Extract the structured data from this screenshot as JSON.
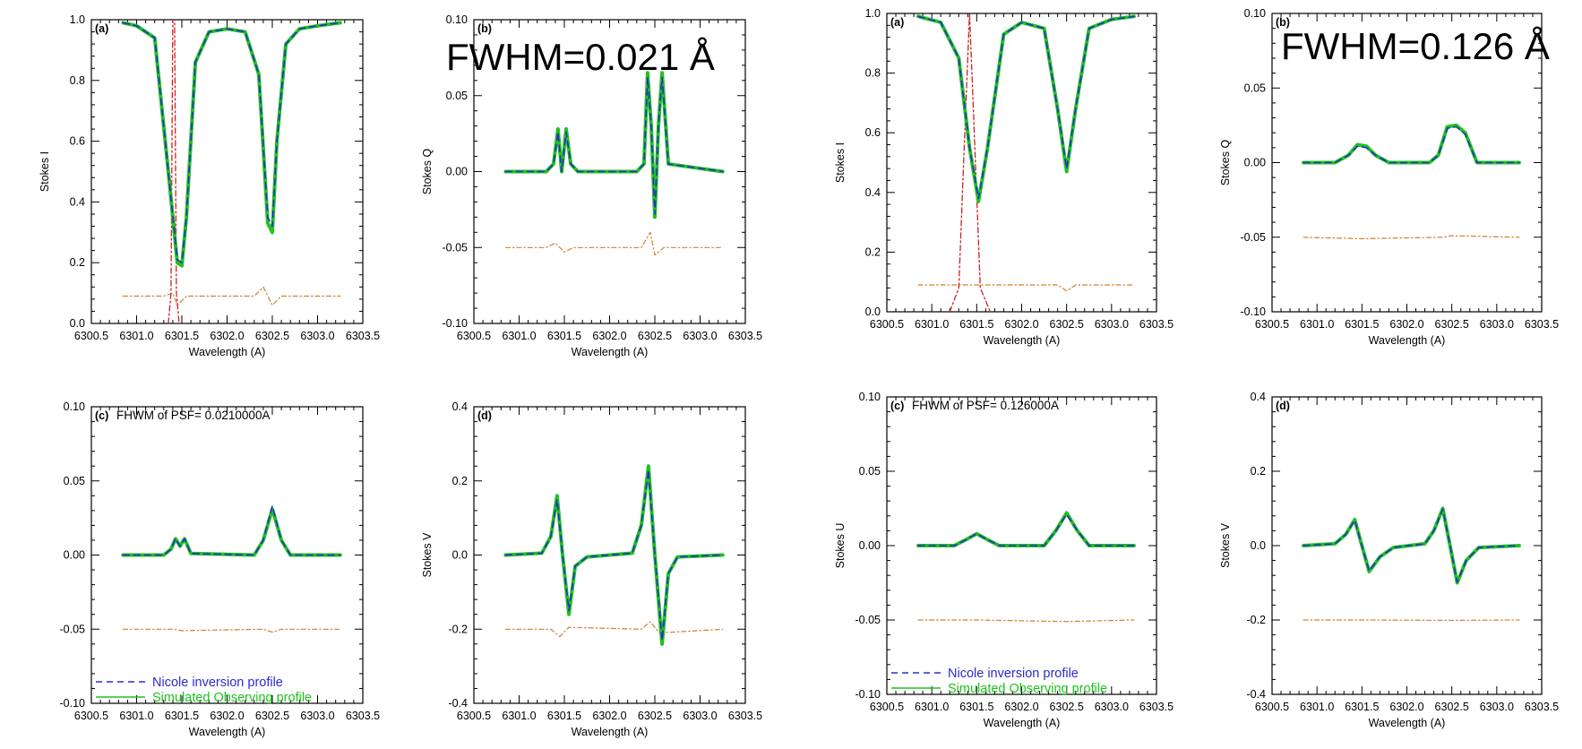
{
  "colors": {
    "inversion": "#2b2bd0",
    "observed": "#1fc21f",
    "residual": "#d08030",
    "psf": "#cc2222",
    "axis": "#000000"
  },
  "figure_labels": {
    "left_fwhm": "FWHM=0.021 Å",
    "right_fwhm": "FWHM=0.126 Å",
    "left_psf": "FHWM of PSF= 0.0210000A",
    "right_psf": "FHWM of PSF= 0.126000A"
  },
  "legend": {
    "inversion": "Nicole inversion profile",
    "observed": "Simulated Observing profile"
  },
  "chart_data": [
    {
      "id": "L-a",
      "type": "line",
      "panel": "(a)",
      "xlabel": "Wavelength (A)",
      "ylabel": "Stokes I",
      "xlim": [
        6300.5,
        6303.5
      ],
      "ylim": [
        0.0,
        1.0
      ],
      "xticks": [
        "6300.5",
        "6301.0",
        "6301.5",
        "6302.0",
        "6302.5",
        "6303.0",
        "6303.5"
      ],
      "yticks": [
        "0.0",
        "0.2",
        "0.4",
        "0.6",
        "0.8",
        "1.0"
      ],
      "series": [
        {
          "role": "observed",
          "x": [
            6300.85,
            6301.0,
            6301.2,
            6301.35,
            6301.45,
            6301.5,
            6301.55,
            6301.65,
            6301.8,
            6302.0,
            6302.2,
            6302.35,
            6302.45,
            6302.5,
            6302.55,
            6302.65,
            6302.8,
            6303.0,
            6303.25
          ],
          "y": [
            0.99,
            0.98,
            0.94,
            0.5,
            0.2,
            0.19,
            0.35,
            0.86,
            0.96,
            0.97,
            0.96,
            0.82,
            0.33,
            0.3,
            0.6,
            0.92,
            0.97,
            0.98,
            0.99
          ]
        },
        {
          "role": "inversion",
          "x": [
            6300.85,
            6301.0,
            6301.2,
            6301.35,
            6301.45,
            6301.5,
            6301.55,
            6301.65,
            6301.8,
            6302.0,
            6302.2,
            6302.35,
            6302.45,
            6302.5,
            6302.55,
            6302.65,
            6302.8,
            6303.0,
            6303.25
          ],
          "y": [
            0.99,
            0.98,
            0.94,
            0.5,
            0.21,
            0.2,
            0.35,
            0.86,
            0.96,
            0.97,
            0.96,
            0.82,
            0.35,
            0.32,
            0.6,
            0.92,
            0.97,
            0.98,
            0.99
          ]
        },
        {
          "role": "psf",
          "x": [
            6301.35,
            6301.38,
            6301.4,
            6301.42,
            6301.44,
            6301.47
          ],
          "y": [
            0.0,
            0.1,
            1.0,
            1.0,
            0.1,
            0.0
          ]
        },
        {
          "role": "residual",
          "x": [
            6300.85,
            6301.3,
            6301.4,
            6301.45,
            6301.55,
            6302.3,
            6302.4,
            6302.5,
            6302.6,
            6303.25
          ],
          "y": [
            0.09,
            0.09,
            0.1,
            0.06,
            0.09,
            0.09,
            0.12,
            0.06,
            0.09,
            0.09
          ]
        }
      ]
    },
    {
      "id": "L-b",
      "type": "line",
      "panel": "(b)",
      "xlabel": "Wavelength (A)",
      "ylabel": "Stokes Q",
      "xlim": [
        6300.5,
        6303.5
      ],
      "ylim": [
        -0.1,
        0.1
      ],
      "xticks": [
        "6300.5",
        "6301.0",
        "6301.5",
        "6302.0",
        "6302.5",
        "6303.0",
        "6303.5"
      ],
      "yticks": [
        "-0.10",
        "-0.05",
        "0.00",
        "0.05",
        "0.10"
      ],
      "series": [
        {
          "role": "observed",
          "x": [
            6300.85,
            6301.3,
            6301.38,
            6301.43,
            6301.47,
            6301.52,
            6301.57,
            6301.65,
            6302.3,
            6302.38,
            6302.42,
            6302.46,
            6302.5,
            6302.54,
            6302.58,
            6302.65,
            6303.25
          ],
          "y": [
            0,
            0,
            0.005,
            0.028,
            0.0,
            0.028,
            0.005,
            0,
            0,
            0.005,
            0.065,
            0.03,
            -0.03,
            0.03,
            0.065,
            0.005,
            0
          ]
        },
        {
          "role": "inversion",
          "x": [
            6300.85,
            6301.3,
            6301.38,
            6301.43,
            6301.47,
            6301.52,
            6301.57,
            6301.65,
            6302.3,
            6302.38,
            6302.42,
            6302.46,
            6302.5,
            6302.54,
            6302.58,
            6302.65,
            6303.25
          ],
          "y": [
            0,
            0,
            0.005,
            0.026,
            0.0,
            0.026,
            0.005,
            0,
            0,
            0.005,
            0.062,
            0.03,
            -0.028,
            0.03,
            0.062,
            0.005,
            0
          ]
        },
        {
          "role": "residual",
          "x": [
            6300.85,
            6301.3,
            6301.4,
            6301.5,
            6301.6,
            6302.35,
            6302.45,
            6302.5,
            6302.6,
            6303.25
          ],
          "y": [
            -0.05,
            -0.05,
            -0.047,
            -0.053,
            -0.05,
            -0.05,
            -0.04,
            -0.055,
            -0.05,
            -0.05
          ]
        }
      ]
    },
    {
      "id": "L-c",
      "type": "line",
      "panel": "(c)",
      "xlabel": "Wavelength (A)",
      "ylabel": "",
      "xlim": [
        6300.5,
        6303.5
      ],
      "ylim": [
        -0.1,
        0.1
      ],
      "xticks": [
        "6300.5",
        "6301.0",
        "6301.5",
        "6302.0",
        "6302.5",
        "6303.0",
        "6303.5"
      ],
      "yticks": [
        "-0.10",
        "-0.05",
        "0.00",
        "0.05",
        "0.10"
      ],
      "series": [
        {
          "role": "observed",
          "x": [
            6300.85,
            6301.3,
            6301.38,
            6301.43,
            6301.48,
            6301.53,
            6301.6,
            6302.3,
            6302.4,
            6302.5,
            6302.6,
            6302.7,
            6303.25
          ],
          "y": [
            0,
            0,
            0.004,
            0.011,
            0.006,
            0.011,
            0.001,
            0,
            0.01,
            0.031,
            0.01,
            0,
            0
          ]
        },
        {
          "role": "inversion",
          "x": [
            6300.85,
            6301.3,
            6301.38,
            6301.43,
            6301.48,
            6301.53,
            6301.6,
            6302.3,
            6302.4,
            6302.5,
            6302.6,
            6302.7,
            6303.25
          ],
          "y": [
            0,
            0,
            0.004,
            0.011,
            0.006,
            0.011,
            0.001,
            0,
            0.01,
            0.033,
            0.01,
            0,
            0
          ]
        },
        {
          "role": "residual",
          "x": [
            6300.85,
            6301.4,
            6301.5,
            6302.4,
            6302.5,
            6302.6,
            6303.25
          ],
          "y": [
            -0.05,
            -0.05,
            -0.051,
            -0.05,
            -0.052,
            -0.05,
            -0.05
          ]
        }
      ]
    },
    {
      "id": "L-d",
      "type": "line",
      "panel": "(d)",
      "xlabel": "Wavelength (A)",
      "ylabel": "Stokes V",
      "xlim": [
        6300.5,
        6303.5
      ],
      "ylim": [
        -0.4,
        0.4
      ],
      "xticks": [
        "6300.5",
        "6301.0",
        "6301.5",
        "6302.0",
        "6302.5",
        "6303.0",
        "6303.5"
      ],
      "yticks": [
        "-0.4",
        "-0.2",
        "0.0",
        "0.2",
        "0.4"
      ],
      "series": [
        {
          "role": "observed",
          "x": [
            6300.85,
            6301.25,
            6301.35,
            6301.42,
            6301.48,
            6301.55,
            6301.62,
            6301.75,
            6302.25,
            6302.35,
            6302.43,
            6302.5,
            6302.58,
            6302.65,
            6302.75,
            6303.25
          ],
          "y": [
            0,
            0.005,
            0.05,
            0.16,
            0.0,
            -0.16,
            -0.03,
            -0.005,
            0.005,
            0.08,
            0.24,
            0.0,
            -0.24,
            -0.05,
            -0.005,
            0
          ]
        },
        {
          "role": "inversion",
          "x": [
            6300.85,
            6301.25,
            6301.35,
            6301.42,
            6301.48,
            6301.55,
            6301.62,
            6301.75,
            6302.25,
            6302.35,
            6302.43,
            6302.5,
            6302.58,
            6302.65,
            6302.75,
            6303.25
          ],
          "y": [
            0,
            0.005,
            0.05,
            0.15,
            0.0,
            -0.15,
            -0.03,
            -0.005,
            0.005,
            0.08,
            0.23,
            0.0,
            -0.23,
            -0.05,
            -0.005,
            0
          ]
        },
        {
          "role": "residual",
          "x": [
            6300.85,
            6301.35,
            6301.45,
            6301.55,
            6302.35,
            6302.45,
            6302.55,
            6303.25
          ],
          "y": [
            -0.2,
            -0.2,
            -0.22,
            -0.195,
            -0.2,
            -0.18,
            -0.21,
            -0.2
          ]
        }
      ]
    },
    {
      "id": "R-a",
      "type": "line",
      "panel": "(a)",
      "xlabel": "Wavelength (A)",
      "ylabel": "Stokes I",
      "xlim": [
        6300.5,
        6303.5
      ],
      "ylim": [
        0.0,
        1.0
      ],
      "xticks": [
        "6300.5",
        "6301.0",
        "6301.5",
        "6302.0",
        "6302.5",
        "6303.0",
        "6303.5"
      ],
      "yticks": [
        "0.0",
        "0.2",
        "0.4",
        "0.6",
        "0.8",
        "1.0"
      ],
      "series": [
        {
          "role": "observed",
          "x": [
            6300.85,
            6301.1,
            6301.3,
            6301.42,
            6301.52,
            6301.62,
            6301.8,
            6302.0,
            6302.25,
            6302.4,
            6302.5,
            6302.6,
            6302.75,
            6303.0,
            6303.25
          ],
          "y": [
            0.99,
            0.97,
            0.85,
            0.55,
            0.37,
            0.55,
            0.93,
            0.97,
            0.95,
            0.68,
            0.47,
            0.68,
            0.95,
            0.98,
            0.99
          ]
        },
        {
          "role": "inversion",
          "x": [
            6300.85,
            6301.1,
            6301.3,
            6301.42,
            6301.52,
            6301.62,
            6301.8,
            6302.0,
            6302.25,
            6302.4,
            6302.5,
            6302.6,
            6302.75,
            6303.0,
            6303.25
          ],
          "y": [
            0.99,
            0.97,
            0.85,
            0.55,
            0.38,
            0.55,
            0.93,
            0.97,
            0.95,
            0.68,
            0.48,
            0.68,
            0.95,
            0.98,
            0.99
          ]
        },
        {
          "role": "psf",
          "x": [
            6301.2,
            6301.3,
            6301.38,
            6301.42,
            6301.46,
            6301.54,
            6301.65
          ],
          "y": [
            0.0,
            0.08,
            0.7,
            1.0,
            0.7,
            0.08,
            0.0
          ]
        },
        {
          "role": "residual",
          "x": [
            6300.85,
            6301.5,
            6302.4,
            6302.5,
            6302.6,
            6303.25
          ],
          "y": [
            0.09,
            0.09,
            0.09,
            0.07,
            0.09,
            0.09
          ]
        }
      ]
    },
    {
      "id": "R-b",
      "type": "line",
      "panel": "(b)",
      "xlabel": "Wavelength (A)",
      "ylabel": "Stokes Q",
      "xlim": [
        6300.5,
        6303.5
      ],
      "ylim": [
        -0.1,
        0.1
      ],
      "xticks": [
        "6300.5",
        "6301.0",
        "6301.5",
        "6302.0",
        "6302.5",
        "6303.0",
        "6303.5"
      ],
      "yticks": [
        "-0.10",
        "-0.05",
        "0.00",
        "0.05",
        "0.10"
      ],
      "series": [
        {
          "role": "observed",
          "x": [
            6300.85,
            6301.2,
            6301.35,
            6301.45,
            6301.55,
            6301.65,
            6301.8,
            6302.25,
            6302.35,
            6302.45,
            6302.55,
            6302.65,
            6302.78,
            6303.25
          ],
          "y": [
            0,
            0,
            0.005,
            0.012,
            0.011,
            0.005,
            0,
            0,
            0.005,
            0.024,
            0.025,
            0.02,
            0,
            0
          ]
        },
        {
          "role": "inversion",
          "x": [
            6300.85,
            6301.2,
            6301.35,
            6301.45,
            6301.55,
            6301.65,
            6301.8,
            6302.25,
            6302.35,
            6302.45,
            6302.55,
            6302.65,
            6302.78,
            6303.25
          ],
          "y": [
            0,
            0,
            0.005,
            0.011,
            0.01,
            0.005,
            0,
            0,
            0.005,
            0.023,
            0.024,
            0.019,
            0,
            0
          ]
        },
        {
          "role": "residual",
          "x": [
            6300.85,
            6301.5,
            6302.4,
            6302.5,
            6303.25
          ],
          "y": [
            -0.05,
            -0.051,
            -0.05,
            -0.049,
            -0.05
          ]
        }
      ]
    },
    {
      "id": "R-c",
      "type": "line",
      "panel": "(c)",
      "xlabel": "Wavelength (A)",
      "ylabel": "Stokes U",
      "xlim": [
        6300.5,
        6303.5
      ],
      "ylim": [
        -0.1,
        0.1
      ],
      "xticks": [
        "6300.5",
        "6301.0",
        "6301.5",
        "6302.0",
        "6302.5",
        "6303.0",
        "6303.5"
      ],
      "yticks": [
        "-0.10",
        "-0.05",
        "0.00",
        "0.05",
        "0.10"
      ],
      "series": [
        {
          "role": "observed",
          "x": [
            6300.85,
            6301.25,
            6301.38,
            6301.5,
            6301.62,
            6301.75,
            6302.25,
            6302.38,
            6302.5,
            6302.62,
            6302.75,
            6303.25
          ],
          "y": [
            0,
            0,
            0.004,
            0.008,
            0.004,
            0,
            0,
            0.01,
            0.022,
            0.01,
            0,
            0
          ]
        },
        {
          "role": "inversion",
          "x": [
            6300.85,
            6301.25,
            6301.38,
            6301.5,
            6301.62,
            6301.75,
            6302.25,
            6302.38,
            6302.5,
            6302.62,
            6302.75,
            6303.25
          ],
          "y": [
            0,
            0,
            0.004,
            0.008,
            0.004,
            0,
            0,
            0.01,
            0.021,
            0.01,
            0,
            0
          ]
        },
        {
          "role": "residual",
          "x": [
            6300.85,
            6301.5,
            6302.5,
            6303.25
          ],
          "y": [
            -0.05,
            -0.05,
            -0.051,
            -0.05
          ]
        }
      ]
    },
    {
      "id": "R-d",
      "type": "line",
      "panel": "(d)",
      "xlabel": "Wavelength (A)",
      "ylabel": "Stokes V",
      "xlim": [
        6300.5,
        6303.5
      ],
      "ylim": [
        -0.4,
        0.4
      ],
      "xticks": [
        "6300.5",
        "6301.0",
        "6301.5",
        "6302.0",
        "6302.5",
        "6303.0",
        "6303.5"
      ],
      "yticks": [
        "-0.4",
        "-0.2",
        "0.0",
        "0.2",
        "0.4"
      ],
      "series": [
        {
          "role": "observed",
          "x": [
            6300.85,
            6301.2,
            6301.32,
            6301.42,
            6301.5,
            6301.58,
            6301.7,
            6301.85,
            6302.2,
            6302.3,
            6302.4,
            6302.48,
            6302.56,
            6302.66,
            6302.8,
            6303.25
          ],
          "y": [
            0,
            0.005,
            0.03,
            0.07,
            0.0,
            -0.07,
            -0.03,
            -0.005,
            0.005,
            0.04,
            0.1,
            0.0,
            -0.1,
            -0.04,
            -0.005,
            0
          ]
        },
        {
          "role": "inversion",
          "x": [
            6300.85,
            6301.2,
            6301.32,
            6301.42,
            6301.5,
            6301.58,
            6301.7,
            6301.85,
            6302.2,
            6302.3,
            6302.4,
            6302.48,
            6302.56,
            6302.66,
            6302.8,
            6303.25
          ],
          "y": [
            0,
            0.005,
            0.03,
            0.068,
            0.0,
            -0.068,
            -0.03,
            -0.005,
            0.005,
            0.04,
            0.098,
            0.0,
            -0.098,
            -0.04,
            -0.005,
            0
          ]
        },
        {
          "role": "residual",
          "x": [
            6300.85,
            6301.5,
            6302.5,
            6303.25
          ],
          "y": [
            -0.2,
            -0.2,
            -0.201,
            -0.2
          ]
        }
      ]
    }
  ]
}
